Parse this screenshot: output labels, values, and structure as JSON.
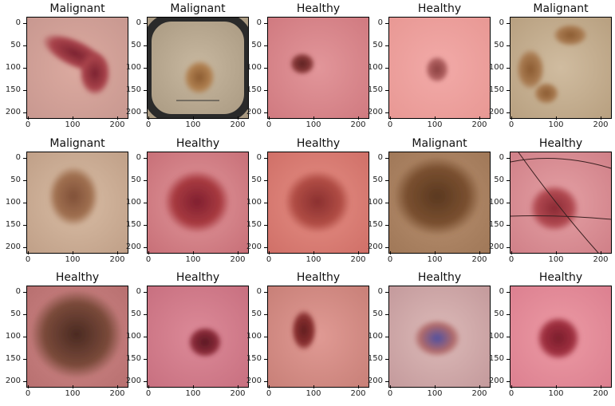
{
  "figure": {
    "yticks": [
      "0",
      "50",
      "100",
      "150",
      "200"
    ],
    "xticks": [
      "0",
      "100",
      "200"
    ]
  },
  "panels": [
    {
      "title": "Malignant",
      "skin": "#dcaaa0",
      "skin2": "#c89890",
      "lesion": "#a8424a",
      "lesion2": "#7a2230",
      "shape": "band"
    },
    {
      "title": "Malignant",
      "skin": "#c8b8a0",
      "skin2": "#a89880",
      "lesion": "#b08050",
      "lesion2": "#8a5a30",
      "shape": "blotch",
      "dark_border": true,
      "ruler": true
    },
    {
      "title": "Healthy",
      "skin": "#e2969a",
      "skin2": "#d07a80",
      "lesion": "#8a3a3a",
      "lesion2": "#5a2020",
      "shape": "small-left"
    },
    {
      "title": "Healthy",
      "skin": "#f2aaa8",
      "skin2": "#e89894",
      "lesion": "#b06060",
      "lesion2": "#8a4040",
      "shape": "small-center"
    },
    {
      "title": "Malignant",
      "skin": "#d0bca0",
      "skin2": "#b8a080",
      "lesion": "#a87a50",
      "lesion2": "#8a5a30",
      "shape": "multi"
    },
    {
      "title": "Malignant",
      "skin": "#d8bca4",
      "skin2": "#c0a088",
      "lesion": "#a07050",
      "lesion2": "#805038",
      "shape": "dotted"
    },
    {
      "title": "Healthy",
      "skin": "#e0969a",
      "skin2": "#c87078",
      "lesion": "#a83a40",
      "lesion2": "#802030",
      "shape": "large"
    },
    {
      "title": "Healthy",
      "skin": "#e48e84",
      "skin2": "#d07068",
      "lesion": "#b04c44",
      "lesion2": "#8a3030",
      "shape": "large"
    },
    {
      "title": "Malignant",
      "skin": "#b89070",
      "skin2": "#a07858",
      "lesion": "#7a5030",
      "lesion2": "#5a3820",
      "shape": "rough"
    },
    {
      "title": "Healthy",
      "skin": "#e4a0a4",
      "skin2": "#d08088",
      "lesion": "#b04850",
      "lesion2": "#8a2a34",
      "shape": "hairs"
    },
    {
      "title": "Healthy",
      "skin": "#d08888",
      "skin2": "#b87070",
      "lesion": "#7a4a3a",
      "lesion2": "#4a2a22",
      "shape": "huge"
    },
    {
      "title": "Healthy",
      "skin": "#dc8a98",
      "skin2": "#c87080",
      "lesion": "#8a2a38",
      "lesion2": "#5a1a24",
      "shape": "small-right"
    },
    {
      "title": "Healthy",
      "skin": "#e09a94",
      "skin2": "#c88078",
      "lesion": "#8a3030",
      "lesion2": "#601e20",
      "shape": "oval"
    },
    {
      "title": "Healthy",
      "skin": "#dcbab8",
      "skin2": "#c49a9c",
      "lesion": "#b06a6a",
      "lesion2": "#5050a0",
      "shape": "faint"
    },
    {
      "title": "Healthy",
      "skin": "#ec9aa4",
      "skin2": "#dc8090",
      "lesion": "#a03040",
      "lesion2": "#7a1e2c",
      "shape": "center"
    }
  ]
}
